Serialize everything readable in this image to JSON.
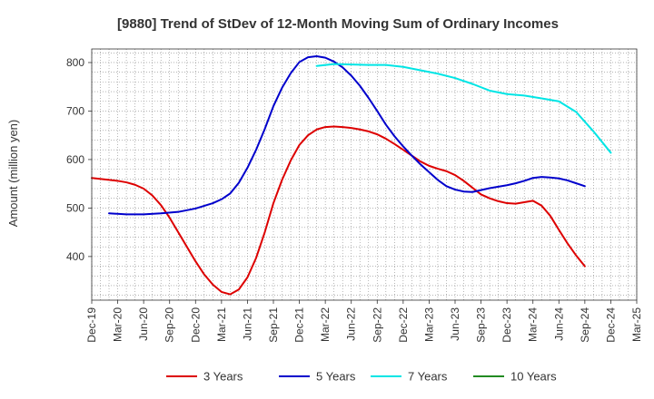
{
  "chart_data": {
    "type": "line",
    "title": "[9880]  Trend of StDev of 12-Month Moving Sum of Ordinary Incomes",
    "xlabel": "",
    "ylabel": "Amount (million yen)",
    "ylim": [
      310,
      828
    ],
    "yticks": [
      400,
      500,
      600,
      700,
      800
    ],
    "grid": true,
    "legend_position": "bottom",
    "x_tick_labels": [
      "Dec-19",
      "Mar-20",
      "Jun-20",
      "Sep-20",
      "Dec-20",
      "Mar-21",
      "Jun-21",
      "Sep-21",
      "Dec-21",
      "Mar-22",
      "Jun-22",
      "Sep-22",
      "Dec-22",
      "Mar-23",
      "Jun-23",
      "Sep-23",
      "Dec-23",
      "Mar-24",
      "Jun-24",
      "Sep-24",
      "Dec-24",
      "Mar-25"
    ],
    "x_range_months": [
      0,
      63
    ],
    "series": [
      {
        "name": "3 Years",
        "color": "#dd0000",
        "x_months": [
          0,
          2,
          3,
          4,
          5,
          6,
          7,
          8,
          9,
          10,
          11,
          12,
          13,
          14,
          15,
          16,
          17,
          18,
          19,
          20,
          21,
          22,
          23,
          24,
          25,
          26,
          27,
          28,
          29,
          30,
          31,
          32,
          33,
          34,
          35,
          36,
          37,
          38,
          39,
          40,
          41,
          42,
          43,
          44,
          45,
          46,
          47,
          48,
          49,
          50,
          51,
          52,
          53,
          54,
          55,
          56,
          57,
          58,
          59,
          60
        ],
        "values": [
          562,
          558,
          556,
          553,
          548,
          540,
          526,
          506,
          480,
          450,
          420,
          390,
          363,
          342,
          327,
          322,
          332,
          357,
          397,
          450,
          510,
          558,
          598,
          630,
          650,
          662,
          667,
          668,
          667,
          665,
          662,
          658,
          652,
          643,
          632,
          620,
          608,
          596,
          587,
          581,
          576,
          568,
          556,
          542,
          528,
          520,
          514,
          510,
          509,
          512,
          515,
          505,
          484,
          455,
          427,
          402,
          380,
          null,
          null,
          null
        ]
      },
      {
        "name": "5 Years",
        "color": "#0000cc",
        "x_months": [
          2,
          4,
          6,
          8,
          10,
          12,
          14,
          15,
          16,
          17,
          18,
          19,
          20,
          21,
          22,
          23,
          24,
          25,
          26,
          27,
          28,
          29,
          30,
          31,
          32,
          33,
          34,
          35,
          36,
          37,
          38,
          39,
          40,
          41,
          42,
          43,
          44,
          45,
          46,
          47,
          48,
          49,
          50,
          51,
          52,
          53,
          54,
          55,
          56,
          57,
          58,
          59,
          60
        ],
        "values": [
          489,
          487,
          487,
          489,
          492,
          499,
          510,
          518,
          530,
          552,
          583,
          620,
          663,
          710,
          748,
          778,
          801,
          811,
          813,
          810,
          802,
          790,
          773,
          752,
          727,
          700,
          672,
          648,
          627,
          608,
          590,
          574,
          558,
          545,
          538,
          534,
          533,
          537,
          541,
          544,
          547,
          551,
          556,
          562,
          564,
          563,
          561,
          557,
          551,
          545,
          null,
          null,
          null
        ]
      },
      {
        "name": "7 Years",
        "color": "#00e5e5",
        "x_months": [
          26,
          28,
          30,
          32,
          34,
          36,
          38,
          40,
          42,
          44,
          46,
          48,
          50,
          52,
          54,
          56,
          58,
          60
        ],
        "values": [
          793,
          797,
          796,
          795,
          795,
          791,
          784,
          777,
          768,
          756,
          742,
          735,
          732,
          726,
          720,
          698,
          658,
          614
        ]
      },
      {
        "name": "10 Years",
        "color": "#228b22",
        "x_months": [],
        "values": []
      }
    ]
  }
}
